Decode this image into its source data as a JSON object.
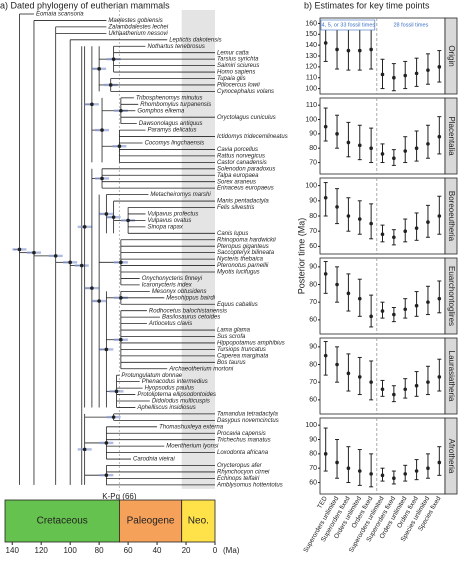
{
  "panel_a": {
    "title": "a) Dated phylogeny of eutherian mammals",
    "taxa": [
      "Eomaia scansoria",
      "Maelestes gobiensis",
      "Zalambdalestes lechei",
      "Ukhaatherium nessovi",
      "Leptictis dakotensis",
      "Nothartus tenebrosus",
      "Lemur catta",
      "Tarsius syrichta",
      "Saimiri sciureus",
      "Homo sapiens",
      "Tupaia glis",
      "Ptilocercus lowii",
      "Cynocephalus volans",
      "Tribosphenomys minutus",
      "Rhombomylus turpanensis",
      "Gomphos elkema",
      "Oryctolagus cuniculus",
      "Dawsonolagus antiquus",
      "Paramys delicatus",
      "Ictidomys tridecemlineatus",
      "Cocomys lingchaensis",
      "Cavia porcellus",
      "Rattus norvegicus",
      "Castor canadensis",
      "Solenodon paradoxus",
      "Talpa europaea",
      "Sorex araneus",
      "Erinaceus europaeus",
      "Metacheiromys marshi",
      "Manis pentadactyla",
      "Felis silvestris",
      "Vulpavus profectus",
      "Vulpavus ovatus",
      "Sinopa rapax",
      "Canis lupus",
      "Rhinopoma hardwickii",
      "Pteropus giganteus",
      "Saccopteryx bilineata",
      "Nycteris thebaica",
      "Pteronotus parnellii",
      "Myotis lucifugus",
      "Onychonycteris finneyi",
      "Icaronycteris index",
      "Mesonyx obtusidens",
      "Mesohippus bairdi",
      "Equus caballus",
      "Rodhocetus balochistanensis",
      "Basilosaurus cetoides",
      "Artiocetus clavis",
      "Lama glama",
      "Sus scrofa",
      "Hippopotamus amphibius",
      "Tursiops truncatus",
      "Caperea marginata",
      "Bos taurus",
      "Archaeotherium mortoni",
      "Protungulatum donnae",
      "Phenacodus intermedius",
      "Hyopsodus paulus",
      "Protolipterna ellipsodontoides",
      "Didolodus multicuspis",
      "Aphelliscus insidiosus",
      "Tamandua tetradactyla",
      "Dasypus novemcinctus",
      "Thomashuxleya externa",
      "Procavia capensis",
      "Trichechus manatus",
      "Moeritherium lyonsi",
      "Loxodonta africana",
      "Carodnia vieirai",
      "Orycteropus afer",
      "Rhynchocyon cirnei",
      "Echinops telfairi",
      "Amblysomus hottentotus"
    ],
    "tip_ages": [
      125,
      75,
      75,
      75,
      33,
      48,
      0,
      0,
      0,
      0,
      0,
      0,
      0,
      56,
      53,
      55,
      0,
      54,
      48,
      0,
      50,
      0,
      0,
      0,
      0,
      0,
      0,
      0,
      46,
      0,
      0,
      48,
      48,
      48,
      0,
      0,
      0,
      0,
      0,
      0,
      0,
      52,
      52,
      45,
      35,
      0,
      47,
      38,
      47,
      0,
      0,
      0,
      0,
      0,
      0,
      33,
      66,
      52,
      50,
      55,
      45,
      55,
      0,
      0,
      40,
      0,
      0,
      35,
      0,
      58,
      0,
      0,
      0,
      0
    ],
    "clades": [
      {
        "first": 0,
        "last": 73,
        "age": 135
      },
      {
        "first": 1,
        "last": 73,
        "age": 125
      },
      {
        "first": 2,
        "last": 73,
        "age": 110
      },
      {
        "first": 4,
        "last": 73,
        "age": 100
      },
      {
        "first": 5,
        "last": 73,
        "age": 92
      },
      {
        "first": 5,
        "last": 61,
        "age": 90
      },
      {
        "first": 5,
        "last": 23,
        "age": 85
      },
      {
        "first": 5,
        "last": 12,
        "age": 80
      },
      {
        "first": 5,
        "last": 9,
        "age": 70
      },
      {
        "first": 10,
        "last": 12,
        "age": 72
      },
      {
        "first": 13,
        "last": 23,
        "age": 78
      },
      {
        "first": 13,
        "last": 17,
        "age": 65
      },
      {
        "first": 18,
        "last": 23,
        "age": 66
      },
      {
        "first": 24,
        "last": 61,
        "age": 85
      },
      {
        "first": 24,
        "last": 27,
        "age": 78
      },
      {
        "first": 28,
        "last": 61,
        "age": 80
      },
      {
        "first": 28,
        "last": 34,
        "age": 75
      },
      {
        "first": 29,
        "last": 34,
        "age": 70
      },
      {
        "first": 30,
        "last": 34,
        "age": 60
      },
      {
        "first": 35,
        "last": 42,
        "age": 65
      },
      {
        "first": 43,
        "last": 61,
        "age": 75
      },
      {
        "first": 43,
        "last": 45,
        "age": 65
      },
      {
        "first": 46,
        "last": 55,
        "age": 65
      },
      {
        "first": 56,
        "last": 61,
        "age": 68
      },
      {
        "first": 62,
        "last": 73,
        "age": 90
      },
      {
        "first": 62,
        "last": 63,
        "age": 70
      },
      {
        "first": 64,
        "last": 69,
        "age": 75
      },
      {
        "first": 70,
        "last": 73,
        "age": 75
      }
    ],
    "xlim": [
      145,
      0
    ],
    "xticks": [
      140,
      120,
      100,
      80,
      60,
      40,
      20,
      0
    ],
    "xunit": "(Ma)",
    "boundary_label": "K-Pg (66)",
    "periods": [
      {
        "name": "Cretaceous",
        "start": 145,
        "end": 66,
        "color": "#66c24e"
      },
      {
        "name": "Paleogene",
        "start": 66,
        "end": 23,
        "color": "#f5a15a"
      },
      {
        "name": "Neo.",
        "start": 23,
        "end": 0,
        "color": "#ffe14a"
      }
    ]
  },
  "chart_data": {
    "type": "errorbar",
    "title": "b) Estimates for key time points",
    "ylabel": "Posterior time (Ma)",
    "color": "#222222",
    "categories": [
      "TED",
      "Superorders unlimited",
      "Superorders fixed",
      "Orders unlimited",
      "Orders fixed",
      "Superorders unlimited",
      "Superorders fixed",
      "Orders unlimited",
      "Orders fixed",
      "Species unlimited",
      "Species fixed"
    ],
    "annotations": [
      "4, 5, or 33 fossil times",
      "28 fossil times"
    ],
    "panels": [
      {
        "name": "Origin",
        "ylim": [
          95,
          165
        ],
        "yticks": [
          100,
          110,
          120,
          130,
          140,
          150,
          160
        ],
        "values": [
          142,
          136,
          135,
          135,
          136,
          113,
          110,
          112,
          114,
          117,
          120
        ],
        "lower": [
          125,
          118,
          117,
          117,
          118,
          100,
          98,
          100,
          102,
          104,
          106
        ],
        "upper": [
          162,
          155,
          155,
          155,
          156,
          127,
          123,
          125,
          128,
          132,
          135
        ]
      },
      {
        "name": "Placentalia",
        "ylim": [
          62,
          115
        ],
        "yticks": [
          70,
          80,
          90,
          100,
          110
        ],
        "values": [
          95,
          90,
          84,
          82,
          80,
          76,
          73,
          78,
          80,
          83,
          88
        ],
        "lower": [
          85,
          80,
          74,
          72,
          70,
          70,
          68,
          70,
          71,
          73,
          76
        ],
        "upper": [
          108,
          103,
          98,
          96,
          94,
          83,
          79,
          88,
          92,
          96,
          102
        ]
      },
      {
        "name": "Boreoeutheria",
        "ylim": [
          55,
          105
        ],
        "yticks": [
          60,
          70,
          80,
          90,
          100
        ],
        "values": [
          92,
          86,
          80,
          78,
          75,
          68,
          66,
          70,
          72,
          76,
          80
        ],
        "lower": [
          80,
          75,
          70,
          68,
          65,
          63,
          61,
          63,
          64,
          66,
          68
        ],
        "upper": [
          102,
          98,
          92,
          90,
          88,
          74,
          71,
          78,
          82,
          87,
          93
        ]
      },
      {
        "name": "Euarchontoglires",
        "ylim": [
          52,
          95
        ],
        "yticks": [
          60,
          70,
          80,
          90
        ],
        "values": [
          86,
          80,
          75,
          72,
          62,
          65,
          63,
          66,
          68,
          70,
          72
        ],
        "lower": [
          75,
          70,
          65,
          62,
          56,
          61,
          59,
          61,
          62,
          63,
          64
        ],
        "upper": [
          93,
          90,
          86,
          83,
          74,
          70,
          67,
          72,
          76,
          79,
          82
        ]
      },
      {
        "name": "Laurasiatheria",
        "ylim": [
          52,
          95
        ],
        "yticks": [
          60,
          70,
          80,
          90
        ],
        "values": [
          85,
          80,
          75,
          73,
          70,
          66,
          63,
          66,
          68,
          70,
          73
        ],
        "lower": [
          74,
          70,
          65,
          63,
          60,
          62,
          59,
          61,
          62,
          63,
          65
        ],
        "upper": [
          93,
          90,
          86,
          84,
          82,
          71,
          68,
          72,
          76,
          79,
          83
        ]
      },
      {
        "name": "Afrotheria",
        "ylim": [
          52,
          105
        ],
        "yticks": [
          60,
          70,
          80,
          90,
          100
        ],
        "values": [
          80,
          74,
          70,
          68,
          66,
          65,
          63,
          66,
          68,
          70,
          74
        ],
        "lower": [
          68,
          63,
          60,
          58,
          57,
          61,
          59,
          61,
          62,
          63,
          65
        ],
        "upper": [
          98,
          90,
          85,
          83,
          80,
          70,
          68,
          72,
          76,
          80,
          85
        ]
      }
    ]
  }
}
